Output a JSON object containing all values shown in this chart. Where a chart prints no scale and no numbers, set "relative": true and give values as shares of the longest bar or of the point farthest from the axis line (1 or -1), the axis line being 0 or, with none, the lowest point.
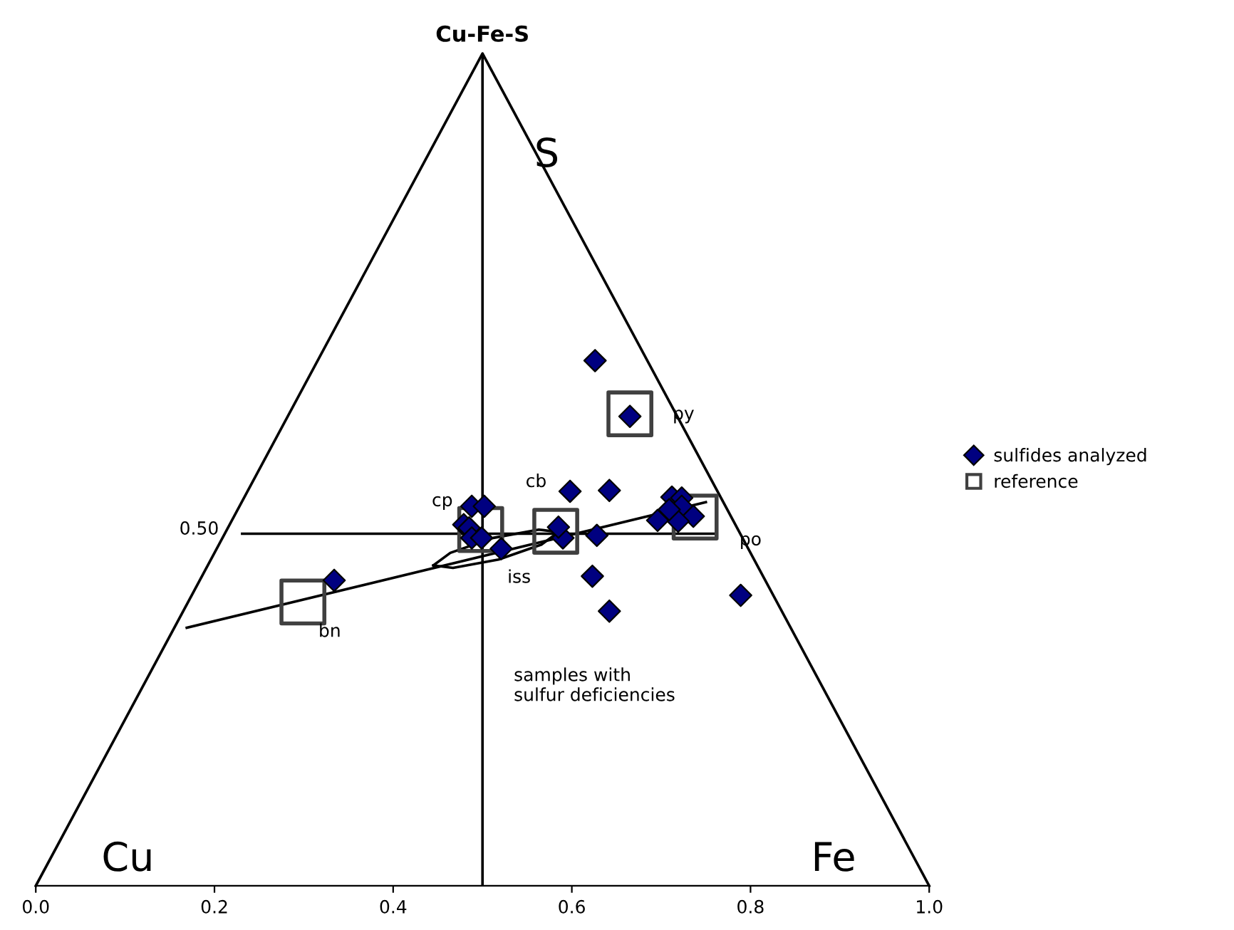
{
  "chart_data": {
    "type": "scatter",
    "title": "Cu-Fe-S",
    "relative": true,
    "xlim": [
      0,
      1
    ],
    "xticks": [
      {
        "value": 0,
        "label": "0.0"
      },
      0.2,
      0.4,
      0.6,
      0.8,
      {
        "value": 1,
        "label": "1.0"
      }
    ],
    "tick_labels": "x",
    "grid": false,
    "legend": "right",
    "ref_lines": [
      {
        "axis": "x",
        "value": 0.5,
        "color": "#000000",
        "line_style": "solid"
      }
    ],
    "series": [
      {
        "type": "line",
        "color": "#000000",
        "marker": "none",
        "line_style": "solid",
        "x": [
          0,
          0.5,
          1
        ],
        "values": [
          0,
          1,
          0
        ]
      },
      {
        "type": "line",
        "color": "#000000",
        "marker": "none",
        "line_style": "solid",
        "x": [
          0.231,
          0.76
        ],
        "values": [
          0.423,
          0.423
        ]
      },
      {
        "type": "line",
        "color": "#000000",
        "marker": "none",
        "line_style": "solid",
        "x": [
          0.169,
          0.75
        ],
        "values": [
          0.31,
          0.461
        ]
      },
      {
        "type": "line",
        "color": "#000000",
        "marker": "none",
        "line_style": "solid",
        "x": [
          0.445,
          0.464,
          0.512,
          0.563,
          0.585
        ],
        "values": [
          0.385,
          0.4,
          0.418,
          0.428,
          0.425
        ]
      },
      {
        "type": "line",
        "color": "#000000",
        "marker": "none",
        "line_style": "solid",
        "x": [
          0.445,
          0.467,
          0.518,
          0.566,
          0.585
        ],
        "values": [
          0.385,
          0.382,
          0.392,
          0.41,
          0.425
        ]
      },
      {
        "name": "sulfides analyzed",
        "color": "#000080",
        "marker": "diamond",
        "x": [
          0.626,
          0.665,
          0.598,
          0.642,
          0.712,
          0.723,
          0.723,
          0.736,
          0.696,
          0.719,
          0.709,
          0.789,
          0.623,
          0.642,
          0.59,
          0.585,
          0.628,
          0.488,
          0.502,
          0.479,
          0.485,
          0.488,
          0.499,
          0.521,
          0.334
        ],
        "values": [
          0.631,
          0.564,
          0.474,
          0.475,
          0.467,
          0.466,
          0.456,
          0.444,
          0.439,
          0.438,
          0.452,
          0.349,
          0.372,
          0.33,
          0.418,
          0.431,
          0.421,
          0.456,
          0.456,
          0.434,
          0.43,
          0.418,
          0.418,
          0.405,
          0.367
        ]
      },
      {
        "name": "reference",
        "color": "#404040",
        "marker": "square",
        "x": [
          0.665,
          0.498,
          0.582,
          0.738,
          0.299
        ],
        "values": [
          0.567,
          0.428,
          0.426,
          0.443,
          0.341
        ]
      }
    ],
    "annotations": [
      "S",
      "Cu",
      "Fe",
      "cp",
      "cb",
      "py",
      "po",
      "bn",
      "iss",
      "0.50",
      "samples with\nsulfur deficiencies"
    ]
  }
}
